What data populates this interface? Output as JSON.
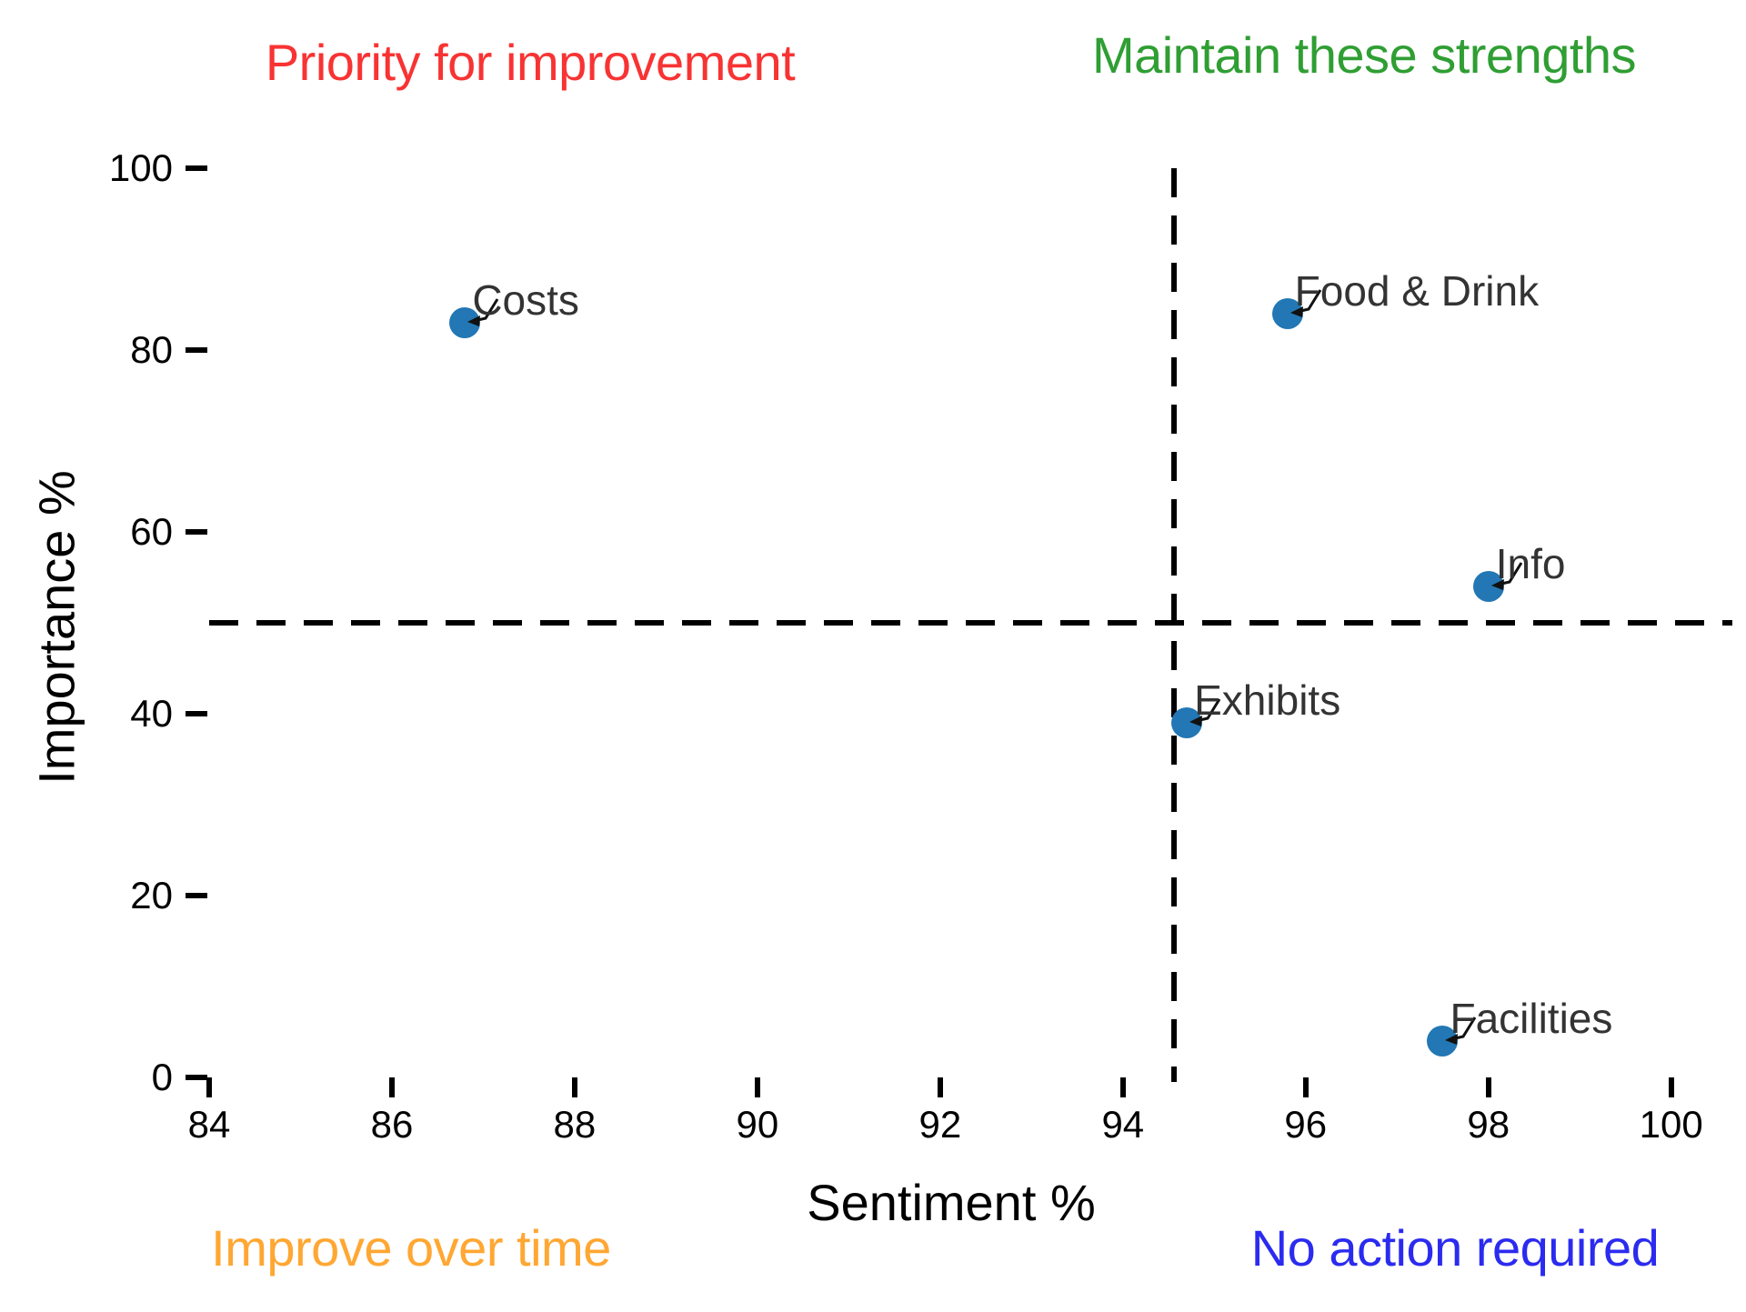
{
  "chart_data": {
    "type": "scatter",
    "xlabel": "Sentiment %",
    "ylabel": "Importance %",
    "xlim": [
      84,
      100.67
    ],
    "ylim": [
      0,
      100
    ],
    "xticks": [
      84,
      86,
      88,
      90,
      92,
      94,
      96,
      98,
      100
    ],
    "yticks": [
      0,
      20,
      40,
      60,
      80,
      100
    ],
    "grid": false,
    "legend": "none",
    "point_color": "#2277b4",
    "annotation_color": "#333333",
    "vline_x": 94.56,
    "hline_y": 50,
    "line_style": "dashed",
    "points": [
      {
        "label": "Costs",
        "x": 86.8,
        "y": 83
      },
      {
        "label": "Food & Drink",
        "x": 95.8,
        "y": 84
      },
      {
        "label": "Info",
        "x": 98.0,
        "y": 54
      },
      {
        "label": "Exhibits",
        "x": 94.7,
        "y": 39
      },
      {
        "label": "Facilities",
        "x": 97.5,
        "y": 4
      }
    ],
    "quadrant_labels": {
      "top_left": {
        "text": "Priority for improvement",
        "color": "#f83333"
      },
      "top_right": {
        "text": "Maintain these strengths",
        "color": "#2f9e33"
      },
      "bottom_left": {
        "text": "Improve over time",
        "color": "#ffa733"
      },
      "bottom_right": {
        "text": "No action required",
        "color": "#2b2bf0"
      }
    }
  }
}
